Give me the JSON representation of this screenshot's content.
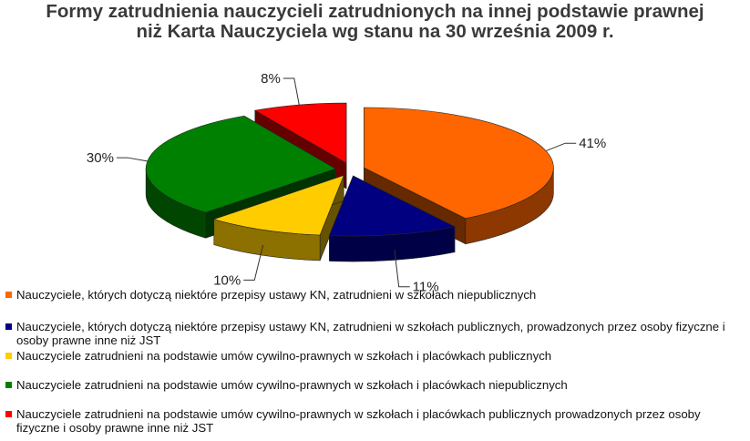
{
  "chart_data": {
    "type": "pie",
    "title_lines": [
      "Formy zatrudnienia nauczycieli zatrudnionych na innej podstawie prawnej",
      "niż Karta Nauczyciela wg stanu na 30 września 2009 r."
    ],
    "slices": [
      {
        "label": "Nauczyciele, których dotyczą niektóre przepisy ustawy KN, zatrudnieni w szkołach niepublicznych",
        "value": 41,
        "data_label": "41%",
        "color": "#ff6600"
      },
      {
        "label": "Nauczyciele, których dotyczą niektóre przepisy ustawy KN, zatrudnieni w szkołach publicznych, prowadzonych przez osoby fizyczne i osoby prawne inne niż JST",
        "value": 11,
        "data_label": "11%",
        "color": "#000080"
      },
      {
        "label": "Nauczyciele zatrudnieni na podstawie umów cywilno-prawnych w szkołach i placówkach publicznych",
        "value": 10,
        "data_label": "10%",
        "color": "#ffcc00"
      },
      {
        "label": "Nauczyciele zatrudnieni na podstawie umów cywilno-prawnych w szkołach i placówkach niepublicznych",
        "value": 30,
        "data_label": "30%",
        "color": "#008000"
      },
      {
        "label": "Nauczyciele zatrudnieni na podstawie umów cywilno-prawnych w szkołach i placówkach publicznych prowadzonych przez osoby fizyczne i osoby prawne inne niż JST",
        "value": 8,
        "data_label": "8%",
        "color": "#ff0000"
      }
    ],
    "legend_placement": "bottom",
    "style": "3d-exploded"
  }
}
